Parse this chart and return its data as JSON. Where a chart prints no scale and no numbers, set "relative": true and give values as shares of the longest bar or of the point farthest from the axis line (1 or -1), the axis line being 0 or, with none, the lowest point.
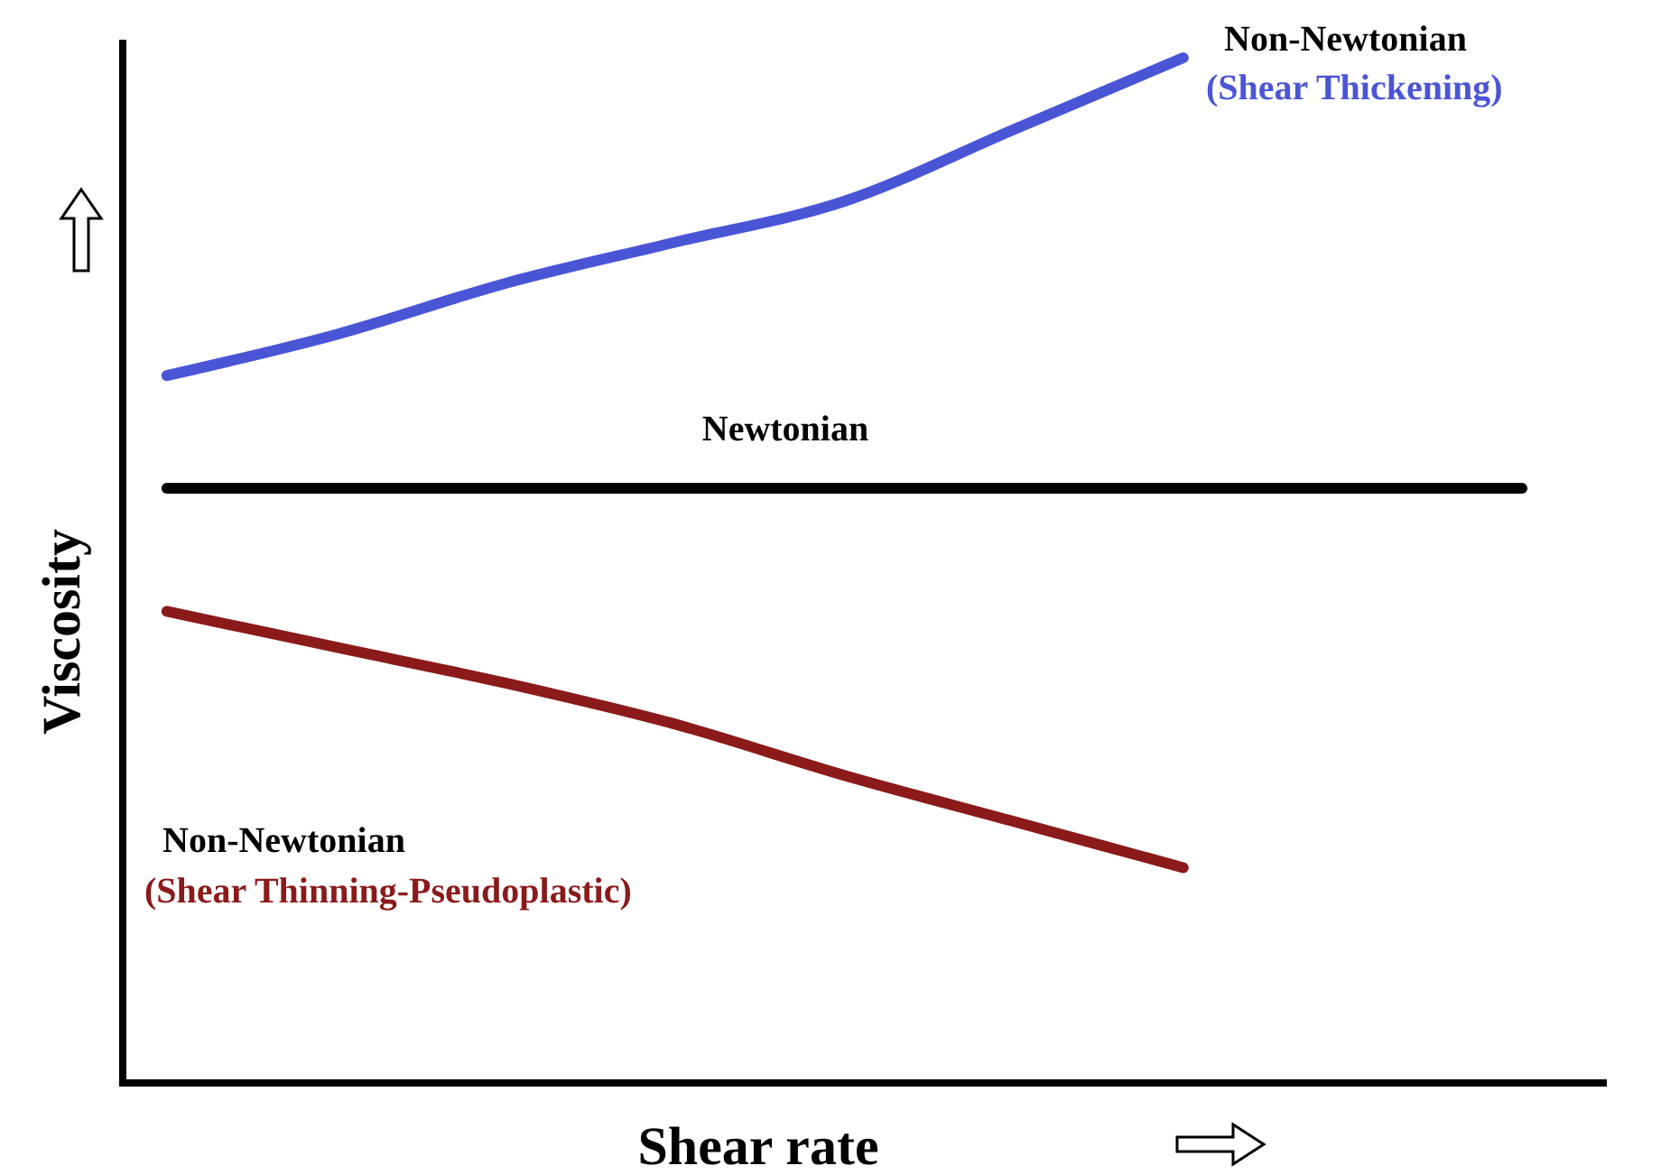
{
  "chart_data": {
    "type": "line",
    "relative": true,
    "xlabel": "Shear rate",
    "ylabel": "Viscosity",
    "categories": [
      null,
      null,
      null,
      null,
      null,
      null,
      null,
      null,
      null
    ],
    "series": [
      {
        "name": "(Shear Thickening)",
        "color": "#4a55d6",
        "values": [
          0.69,
          0.73,
          0.78,
          0.82,
          0.86,
          0.93,
          1.0,
          null,
          null
        ]
      },
      {
        "name": "Newtonian",
        "color": "#000000",
        "values": [
          0.58,
          0.58,
          0.58,
          0.58,
          0.58,
          0.58,
          0.58,
          0.58,
          0.58
        ]
      },
      {
        "name": "(Shear Thinning-Pseudoplastic)",
        "color": "#8b1a1a",
        "values": [
          0.46,
          0.425,
          0.39,
          0.35,
          0.3,
          0.255,
          0.21,
          null,
          null
        ]
      }
    ],
    "annotations": [
      "Non-Newtonian",
      "Non-Newtonian"
    ],
    "grid": false,
    "legend": false,
    "marker": "none",
    "line_style": "solid"
  }
}
